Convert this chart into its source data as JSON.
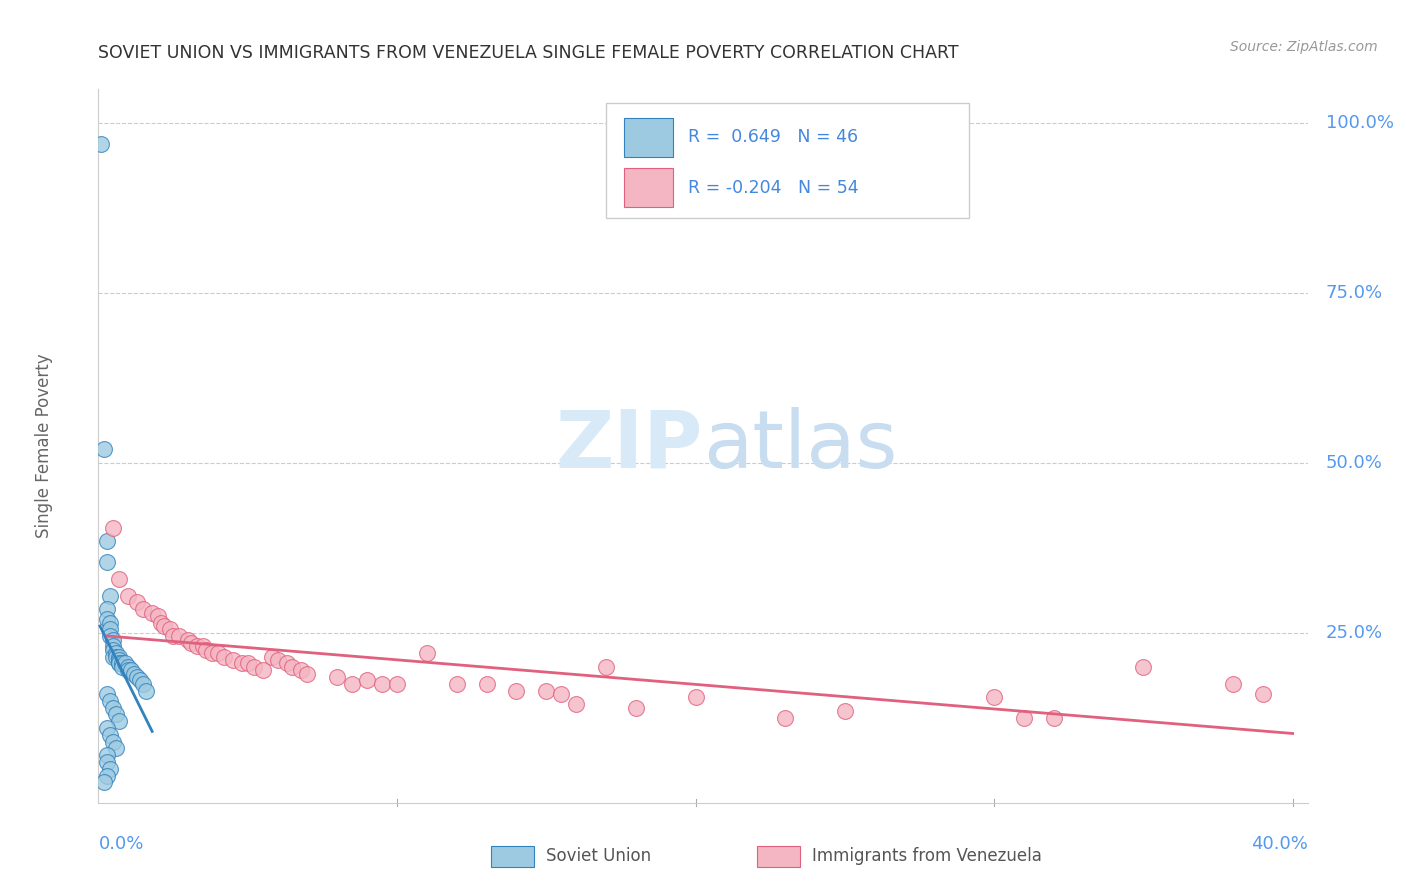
{
  "title": "SOVIET UNION VS IMMIGRANTS FROM VENEZUELA SINGLE FEMALE POVERTY CORRELATION CHART",
  "source": "Source: ZipAtlas.com",
  "ylabel": "Single Female Poverty",
  "ytick_labels": [
    "100.0%",
    "75.0%",
    "50.0%",
    "25.0%"
  ],
  "ytick_values": [
    1.0,
    0.75,
    0.5,
    0.25
  ],
  "legend_label1": "Soviet Union",
  "legend_label2": "Immigrants from Venezuela",
  "R1": 0.649,
  "N1": 46,
  "R2": -0.204,
  "N2": 54,
  "color_blue": "#9ecae1",
  "color_pink": "#f4b6c2",
  "color_blue_line": "#3182bd",
  "color_pink_line": "#e0607e",
  "watermark_zip": "ZIP",
  "watermark_atlas": "atlas",
  "blue_dots": [
    [
      0.001,
      0.97
    ],
    [
      0.002,
      0.52
    ],
    [
      0.003,
      0.385
    ],
    [
      0.003,
      0.355
    ],
    [
      0.004,
      0.305
    ],
    [
      0.003,
      0.285
    ],
    [
      0.003,
      0.27
    ],
    [
      0.004,
      0.265
    ],
    [
      0.004,
      0.255
    ],
    [
      0.004,
      0.245
    ],
    [
      0.005,
      0.24
    ],
    [
      0.005,
      0.23
    ],
    [
      0.005,
      0.225
    ],
    [
      0.005,
      0.215
    ],
    [
      0.006,
      0.22
    ],
    [
      0.006,
      0.215
    ],
    [
      0.007,
      0.21
    ],
    [
      0.007,
      0.205
    ],
    [
      0.007,
      0.215
    ],
    [
      0.007,
      0.21
    ],
    [
      0.007,
      0.205
    ],
    [
      0.008,
      0.205
    ],
    [
      0.008,
      0.2
    ],
    [
      0.009,
      0.205
    ],
    [
      0.01,
      0.2
    ],
    [
      0.01,
      0.195
    ],
    [
      0.011,
      0.195
    ],
    [
      0.012,
      0.19
    ],
    [
      0.013,
      0.185
    ],
    [
      0.014,
      0.18
    ],
    [
      0.015,
      0.175
    ],
    [
      0.016,
      0.165
    ],
    [
      0.003,
      0.16
    ],
    [
      0.004,
      0.15
    ],
    [
      0.005,
      0.14
    ],
    [
      0.006,
      0.13
    ],
    [
      0.007,
      0.12
    ],
    [
      0.003,
      0.11
    ],
    [
      0.004,
      0.1
    ],
    [
      0.005,
      0.09
    ],
    [
      0.006,
      0.08
    ],
    [
      0.003,
      0.07
    ],
    [
      0.003,
      0.06
    ],
    [
      0.004,
      0.05
    ],
    [
      0.003,
      0.04
    ],
    [
      0.002,
      0.03
    ]
  ],
  "pink_dots": [
    [
      0.005,
      0.405
    ],
    [
      0.007,
      0.33
    ],
    [
      0.01,
      0.305
    ],
    [
      0.013,
      0.295
    ],
    [
      0.015,
      0.285
    ],
    [
      0.018,
      0.28
    ],
    [
      0.02,
      0.275
    ],
    [
      0.021,
      0.265
    ],
    [
      0.022,
      0.26
    ],
    [
      0.024,
      0.255
    ],
    [
      0.025,
      0.245
    ],
    [
      0.027,
      0.245
    ],
    [
      0.03,
      0.24
    ],
    [
      0.031,
      0.235
    ],
    [
      0.033,
      0.23
    ],
    [
      0.035,
      0.23
    ],
    [
      0.036,
      0.225
    ],
    [
      0.038,
      0.22
    ],
    [
      0.04,
      0.22
    ],
    [
      0.042,
      0.215
    ],
    [
      0.045,
      0.21
    ],
    [
      0.048,
      0.205
    ],
    [
      0.05,
      0.205
    ],
    [
      0.052,
      0.2
    ],
    [
      0.055,
      0.195
    ],
    [
      0.058,
      0.215
    ],
    [
      0.06,
      0.21
    ],
    [
      0.063,
      0.205
    ],
    [
      0.065,
      0.2
    ],
    [
      0.068,
      0.195
    ],
    [
      0.07,
      0.19
    ],
    [
      0.08,
      0.185
    ],
    [
      0.085,
      0.175
    ],
    [
      0.09,
      0.18
    ],
    [
      0.095,
      0.175
    ],
    [
      0.1,
      0.175
    ],
    [
      0.11,
      0.22
    ],
    [
      0.12,
      0.175
    ],
    [
      0.13,
      0.175
    ],
    [
      0.14,
      0.165
    ],
    [
      0.15,
      0.165
    ],
    [
      0.155,
      0.16
    ],
    [
      0.16,
      0.145
    ],
    [
      0.17,
      0.2
    ],
    [
      0.18,
      0.14
    ],
    [
      0.2,
      0.155
    ],
    [
      0.23,
      0.125
    ],
    [
      0.25,
      0.135
    ],
    [
      0.3,
      0.155
    ],
    [
      0.31,
      0.125
    ],
    [
      0.32,
      0.125
    ],
    [
      0.35,
      0.2
    ],
    [
      0.38,
      0.175
    ],
    [
      0.39,
      0.16
    ]
  ],
  "xmin": 0.0,
  "xmax": 0.405,
  "ymin": 0.0,
  "ymax": 1.05
}
